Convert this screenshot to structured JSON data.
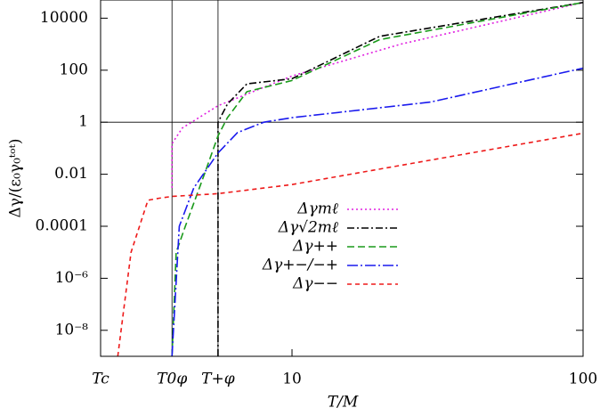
{
  "chart_data": {
    "type": "line",
    "x_label": "T/M",
    "y_label": "Δγ/(ε₀γ₀ᵗᵒᵗ)",
    "log_x": true,
    "log_y": true,
    "xlim": [
      2.2,
      100
    ],
    "ylim": [
      1e-09,
      50000
    ],
    "xticks": [
      {
        "value": 2.2,
        "label": "Tc"
      },
      {
        "value": 3.87,
        "label": "T0φ"
      },
      {
        "value": 5.57,
        "label": "T+φ"
      },
      10,
      100
    ],
    "yticks": [
      10000,
      100,
      1,
      0.01,
      0.0001,
      {
        "value": 1e-06,
        "label": "10⁻⁶"
      },
      {
        "value": 1e-08,
        "label": "10⁻⁸"
      }
    ],
    "vlines": [
      3.87,
      5.57
    ],
    "hlines": [
      1
    ],
    "series": [
      {
        "name": "Δγmℓ",
        "color": "#e020e0",
        "dash": "2,3",
        "x": [
          3.87,
          3.87,
          4.2,
          5.57,
          10,
          23.6,
          100
        ],
        "values": [
          0.003,
          0.15,
          0.6,
          4.3,
          60,
          1000,
          40000
        ]
      },
      {
        "name": "Δγ√2mℓ",
        "color": "#000000",
        "dash": "8,3,2,3",
        "x": [
          5.57,
          5.57,
          6,
          7,
          10,
          20,
          100
        ],
        "values": [
          1e-09,
          1,
          5,
          30,
          47,
          2000,
          40000
        ]
      },
      {
        "name": "Δγ++",
        "color": "#1a9a1a",
        "dash": "8,4",
        "x": [
          3.87,
          4,
          4.3,
          5,
          5.57,
          6,
          7,
          10,
          20,
          100
        ],
        "values": [
          1e-09,
          1e-05,
          0.0001,
          0.01,
          0.3,
          1.5,
          15,
          40,
          1500,
          40000
        ]
      },
      {
        "name": "Δγ+−/−+",
        "color": "#1a1aee",
        "dash": "12,3,2,3",
        "x": [
          3.87,
          4.1,
          4.6,
          5.57,
          6.5,
          8,
          10,
          30,
          100
        ],
        "values": [
          1e-09,
          0.0001,
          0.003,
          0.066,
          0.4,
          1,
          1.5,
          6,
          120
        ]
      },
      {
        "name": "Δγ−−",
        "color": "#ee1a1a",
        "dash": "5,4",
        "x": [
          2.52,
          2.8,
          3.2,
          3.5,
          3.87,
          5.57,
          10,
          100
        ],
        "values": [
          1e-09,
          1e-05,
          0.001,
          0.0012,
          0.0014,
          0.0018,
          0.004,
          0.38
        ]
      }
    ]
  }
}
